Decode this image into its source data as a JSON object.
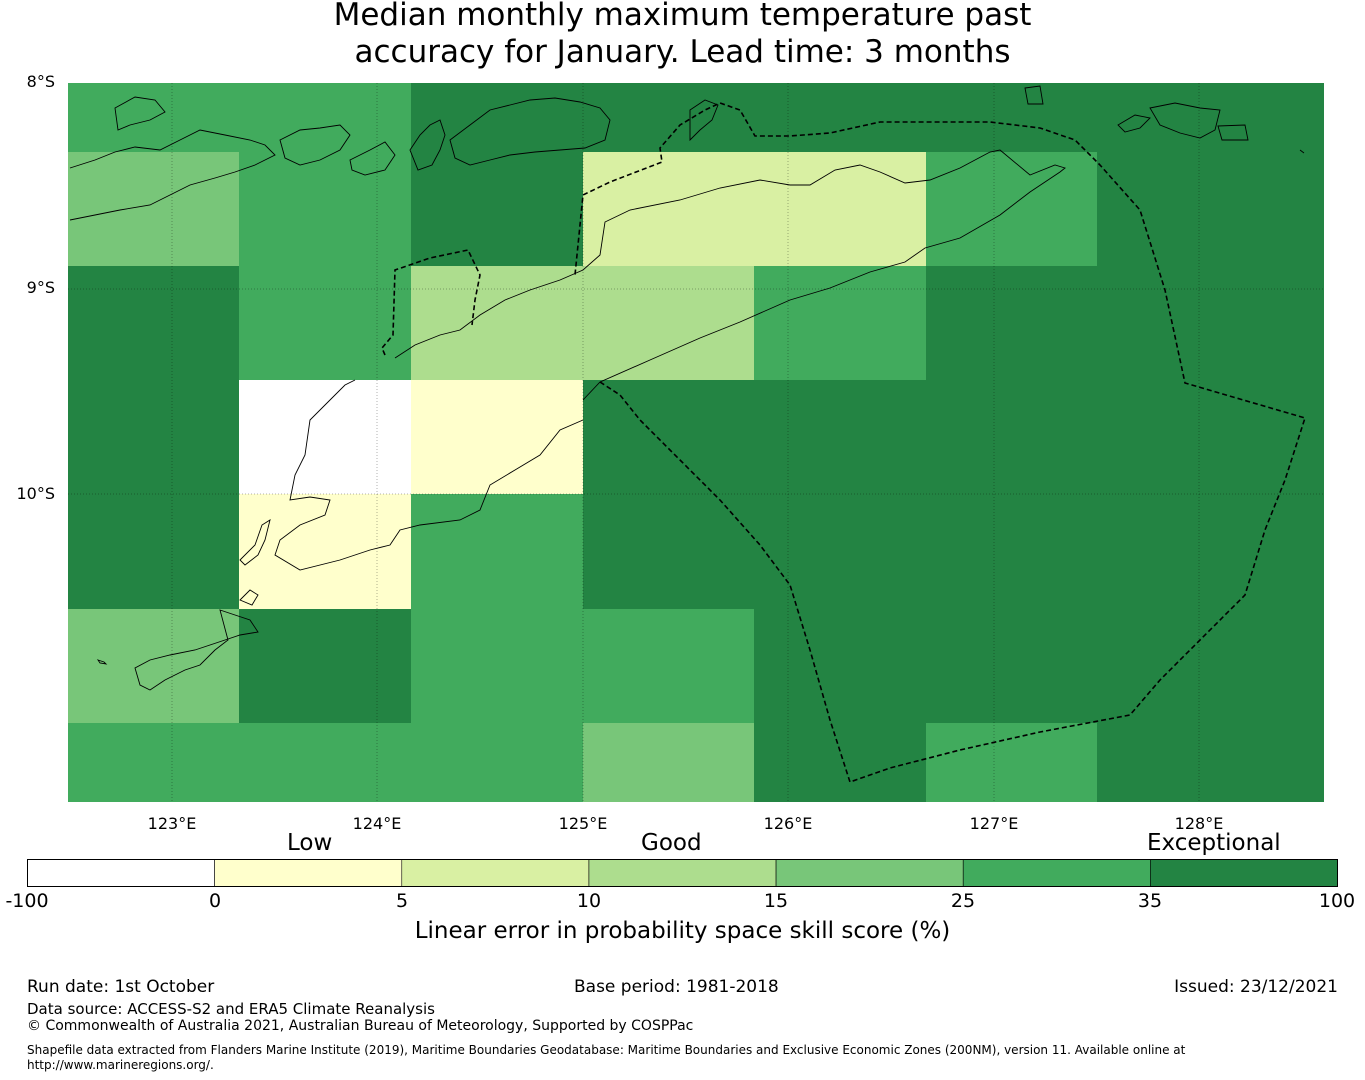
{
  "title": {
    "line1": "Median monthly maximum temperature past",
    "line2": "accuracy for January. Lead time: 3 months"
  },
  "axes": {
    "lat_labels": [
      "8°S",
      "9°S",
      "10°S"
    ],
    "lon_labels": [
      "123°E",
      "124°E",
      "125°E",
      "126°E",
      "127°E",
      "128°E"
    ]
  },
  "legend": {
    "categories": [
      "Low",
      "Good",
      "Exceptional"
    ],
    "ticks": [
      "-100",
      "0",
      "5",
      "10",
      "15",
      "25",
      "35",
      "100"
    ],
    "colors": [
      "#ffffff",
      "#ffffcc",
      "#d9f0a3",
      "#addd8e",
      "#78c679",
      "#41ab5d",
      "#238443"
    ],
    "label": "Linear error in probability space skill score (%)"
  },
  "footer": {
    "run_date": "Run date: 1st October",
    "base_period": "Base period: 1981-2018",
    "issued": "Issued: 23/12/2021",
    "data_source": "Data source: ACCESS-S2 and ERA5 Climate Reanalysis",
    "copyright": "© Commonwealth of Australia 2021, Australian Bureau of Meteorology, Supported by COSPPac",
    "shapefile_line1": "Shapefile data extracted from Flanders Marine Institute (2019), Maritime Boundaries Geodatabase: Maritime Boundaries and Exclusive Economic Zones (200NM), version 11. Available online at",
    "shapefile_line2": "http://www.marineregions.org/."
  },
  "grid_skill_classes": [
    [
      5,
      5,
      6,
      6,
      6,
      6,
      6,
      6
    ],
    [
      4,
      5,
      6,
      2,
      2,
      5,
      6,
      6
    ],
    [
      6,
      5,
      3,
      3,
      5,
      6,
      6,
      6
    ],
    [
      6,
      0,
      1,
      6,
      6,
      6,
      6,
      6
    ],
    [
      6,
      1,
      5,
      6,
      6,
      6,
      6,
      6
    ],
    [
      4,
      6,
      5,
      5,
      6,
      6,
      6,
      6
    ],
    [
      5,
      5,
      5,
      4,
      6,
      5,
      6,
      6
    ]
  ]
}
